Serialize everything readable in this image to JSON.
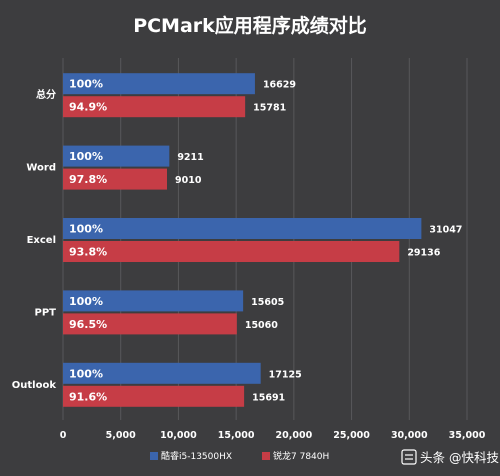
{
  "chart_data": {
    "type": "bar",
    "orientation": "horizontal",
    "title": "PCMark应用程序成绩对比",
    "categories": [
      "总分",
      "Word",
      "Excel",
      "PPT",
      "Outlook"
    ],
    "series": [
      {
        "name": "酷睿i5-13500HX",
        "color": "#3b65ad",
        "values": [
          16629,
          9211,
          31047,
          15605,
          17125
        ],
        "labels": [
          "100%",
          "100%",
          "100%",
          "100%",
          "100%"
        ]
      },
      {
        "name": "锐龙7 7840H",
        "color": "#c63d46",
        "values": [
          15781,
          9010,
          29136,
          15060,
          15691
        ],
        "labels": [
          "94.9%",
          "97.8%",
          "93.8%",
          "96.5%",
          "91.6%"
        ]
      }
    ],
    "xlim": [
      0,
      35000
    ],
    "xticks": [
      0,
      5000,
      10000,
      15000,
      20000,
      25000,
      30000,
      35000
    ],
    "xtick_labels": [
      "0",
      "5,000",
      "10,000",
      "15,000",
      "20,000",
      "25,000",
      "30,000",
      "35,000"
    ],
    "legend_position": "bottom",
    "grid": true
  },
  "watermark": {
    "icon": "headline-icon",
    "text": "头条 @快科技"
  },
  "colors": {
    "background": "#3d3d3f",
    "grid": "#58585b",
    "text": "#ffffff"
  }
}
